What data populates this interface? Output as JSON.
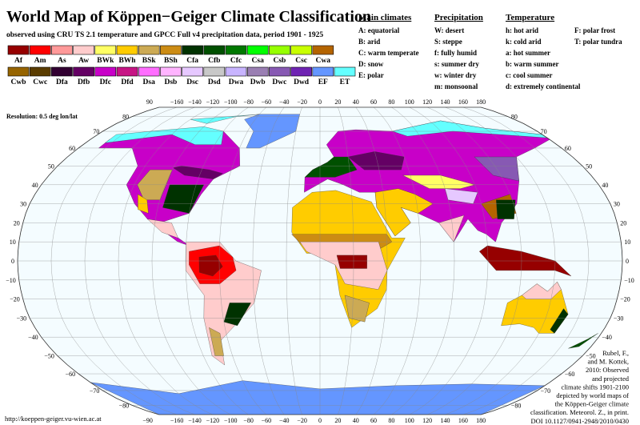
{
  "title": "World Map of Köppen−Geiger Climate Classification",
  "subtitle": "observed using CRU TS 2.1 temperature and GPCC Full v4 precipitation data, period 1901 - 1925",
  "legend": [
    {
      "code": "Af",
      "color": "#960000"
    },
    {
      "code": "Am",
      "color": "#ff0000"
    },
    {
      "code": "As",
      "color": "#ff9999"
    },
    {
      "code": "Aw",
      "color": "#ffcccc"
    },
    {
      "code": "BWk",
      "color": "#ffff64"
    },
    {
      "code": "BWh",
      "color": "#ffcc00"
    },
    {
      "code": "BSk",
      "color": "#ccaa54"
    },
    {
      "code": "BSh",
      "color": "#cc8c14"
    },
    {
      "code": "Cfa",
      "color": "#003200"
    },
    {
      "code": "Cfb",
      "color": "#005000"
    },
    {
      "code": "Cfc",
      "color": "#007800"
    },
    {
      "code": "Csa",
      "color": "#00ff00"
    },
    {
      "code": "Csb",
      "color": "#96ff00"
    },
    {
      "code": "Csc",
      "color": "#c8ff00"
    },
    {
      "code": "Cwa",
      "color": "#b46400"
    },
    {
      "code": "Cwb",
      "color": "#966400"
    },
    {
      "code": "Cwc",
      "color": "#5a3c00"
    },
    {
      "code": "Dfa",
      "color": "#320032"
    },
    {
      "code": "Dfb",
      "color": "#640064"
    },
    {
      "code": "Dfc",
      "color": "#c800c8"
    },
    {
      "code": "Dfd",
      "color": "#c71585"
    },
    {
      "code": "Dsa",
      "color": "#ff6dff"
    },
    {
      "code": "Dsb",
      "color": "#ffb4ff"
    },
    {
      "code": "Dsc",
      "color": "#e6c8ff"
    },
    {
      "code": "Dsd",
      "color": "#c8c8c8"
    },
    {
      "code": "Dwa",
      "color": "#c8b4ff"
    },
    {
      "code": "Dwb",
      "color": "#9a7fb3"
    },
    {
      "code": "Dwc",
      "color": "#8759b3"
    },
    {
      "code": "Dwd",
      "color": "#6f24b3"
    },
    {
      "code": "EF",
      "color": "#6496ff"
    },
    {
      "code": "ET",
      "color": "#64ffff"
    }
  ],
  "key": {
    "main": {
      "heading": "Main climates",
      "items": [
        "A: equatorial",
        "B: arid",
        "C: warm temperate",
        "D: snow",
        "E: polar"
      ]
    },
    "precipitation": {
      "heading": "Precipitation",
      "items": [
        "W: desert",
        "S: steppe",
        "f: fully humid",
        "s: summer dry",
        "w: winter dry",
        "m: monsoonal"
      ]
    },
    "temperature": {
      "heading": "Temperature",
      "items": [
        "h: hot arid",
        "k: cold arid",
        "a: hot summer",
        "b: warm summer",
        "c: cool summer",
        "d: extremely continental"
      ],
      "items2": [
        "F: polar frost",
        "T: polar tundra"
      ]
    }
  },
  "map": {
    "resolution": "Resolution: 0.5 deg lon/lat",
    "corner_top": "90",
    "corner_bottom": "−90",
    "lon_labels": [
      "−160",
      "−140",
      "−120",
      "−100",
      "−80",
      "−60",
      "−40",
      "−20",
      "0",
      "20",
      "40",
      "60",
      "80",
      "100",
      "120",
      "140",
      "160",
      "180"
    ],
    "lat_labels": [
      "80",
      "70",
      "60",
      "50",
      "40",
      "30",
      "20",
      "10",
      "0",
      "−10",
      "−20",
      "−30",
      "−40",
      "−50",
      "−60",
      "−70",
      "−80"
    ]
  },
  "url": "http://koeppen-geiger.vu-wien.ac.at",
  "citation": [
    "Rubel, F.,",
    "and M. Kottek,",
    "2010: Observed",
    "and projected",
    "climate shifts 1901-2100",
    "depicted by world maps of",
    "the Köppen-Geiger climate",
    "classification. Meteorol. Z., in print.",
    "DOI 10.1127/0941-2948/2010/0430"
  ]
}
